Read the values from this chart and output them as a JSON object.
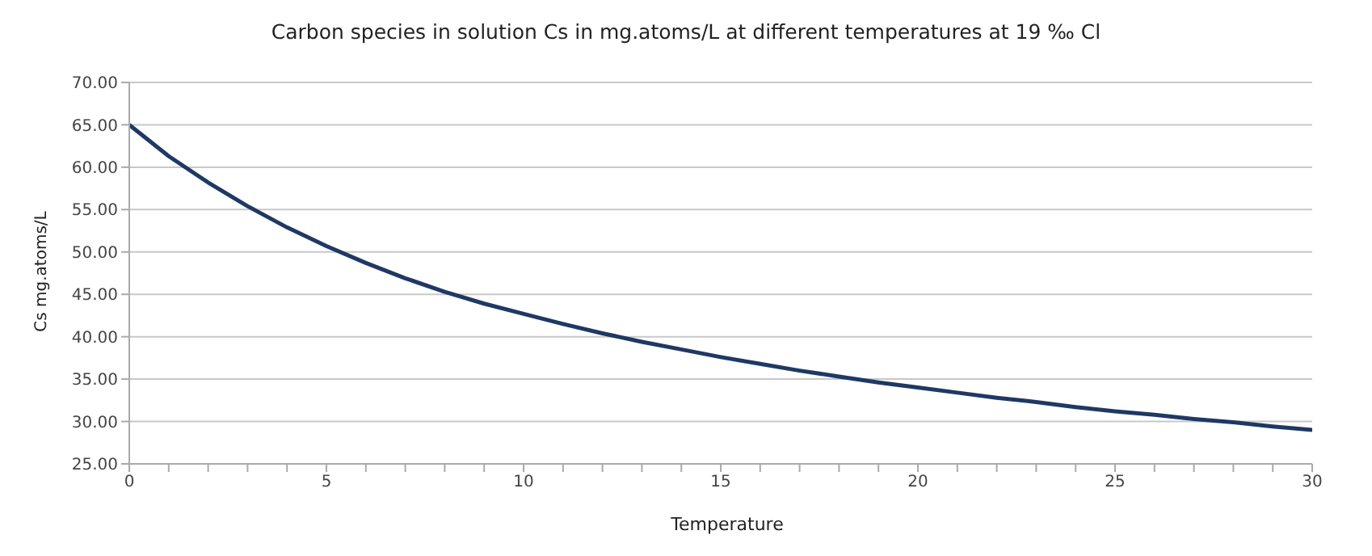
{
  "chart_data": {
    "type": "line",
    "title": "Carbon species in solution Cs in mg.atoms/L at different temperatures at 19 ‰ Cl",
    "xlabel": "Temperature",
    "ylabel": "Cs mg.atoms/L",
    "x": [
      0,
      1,
      2,
      3,
      4,
      5,
      6,
      7,
      8,
      9,
      10,
      11,
      12,
      13,
      14,
      15,
      16,
      17,
      18,
      19,
      20,
      21,
      22,
      23,
      24,
      25,
      26,
      27,
      28,
      29,
      30
    ],
    "series": [
      {
        "color": "#1f3864",
        "values": [
          65.0,
          61.3,
          58.2,
          55.4,
          52.9,
          50.7,
          48.7,
          46.9,
          45.3,
          43.9,
          42.7,
          41.5,
          40.4,
          39.4,
          38.5,
          37.6,
          36.8,
          36.0,
          35.3,
          34.6,
          34.0,
          33.4,
          32.8,
          32.3,
          31.7,
          31.2,
          30.8,
          30.3,
          29.9,
          29.4,
          29.0
        ]
      }
    ],
    "xlim": [
      0,
      30
    ],
    "xticks": [
      0,
      {
        "value": 1,
        "label": null
      },
      {
        "value": 2,
        "label": null
      },
      {
        "value": 3,
        "label": null
      },
      {
        "value": 4,
        "label": null
      },
      5,
      {
        "value": 6,
        "label": null
      },
      {
        "value": 7,
        "label": null
      },
      {
        "value": 8,
        "label": null
      },
      {
        "value": 9,
        "label": null
      },
      10,
      {
        "value": 11,
        "label": null
      },
      {
        "value": 12,
        "label": null
      },
      {
        "value": 13,
        "label": null
      },
      {
        "value": 14,
        "label": null
      },
      15,
      {
        "value": 16,
        "label": null
      },
      {
        "value": 17,
        "label": null
      },
      {
        "value": 18,
        "label": null
      },
      {
        "value": 19,
        "label": null
      },
      20,
      {
        "value": 21,
        "label": null
      },
      {
        "value": 22,
        "label": null
      },
      {
        "value": 23,
        "label": null
      },
      {
        "value": 24,
        "label": null
      },
      25,
      {
        "value": 26,
        "label": null
      },
      {
        "value": 27,
        "label": null
      },
      {
        "value": 28,
        "label": null
      },
      {
        "value": 29,
        "label": null
      },
      30
    ],
    "ylim": [
      25,
      70
    ],
    "yticks": [
      {
        "value": 25,
        "label": "25.00"
      },
      {
        "value": 30,
        "label": "30.00"
      },
      {
        "value": 35,
        "label": "35.00"
      },
      {
        "value": 40,
        "label": "40.00"
      },
      {
        "value": 45,
        "label": "45.00"
      },
      {
        "value": 50,
        "label": "50.00"
      },
      {
        "value": 55,
        "label": "55.00"
      },
      {
        "value": 60,
        "label": "60.00"
      },
      {
        "value": 65,
        "label": "65.00"
      },
      {
        "value": 70,
        "label": "70.00"
      }
    ],
    "grid": "y",
    "marker": "none",
    "line_style": "solid"
  }
}
